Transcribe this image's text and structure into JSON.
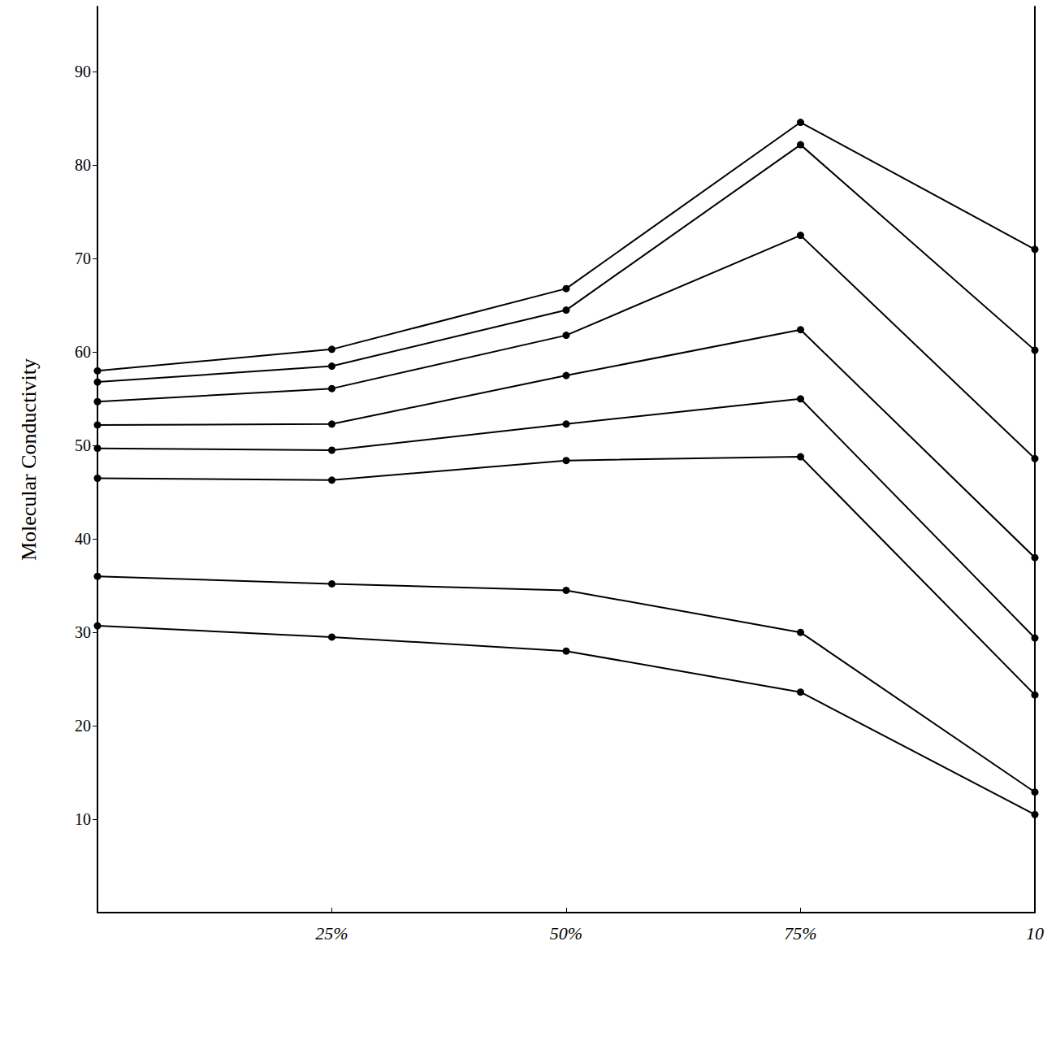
{
  "chart_data": {
    "type": "line",
    "y_label": "Molecular Conductivity",
    "categories": [
      null,
      "25%",
      "50%",
      "75%",
      "10"
    ],
    "series": [
      {
        "color": "#000000",
        "values": [
          58,
          60.3,
          66.8,
          84.6,
          71
        ]
      },
      {
        "color": "#000000",
        "values": [
          56.8,
          58.5,
          64.5,
          82.2,
          60.2
        ]
      },
      {
        "color": "#000000",
        "values": [
          54.7,
          56.1,
          61.8,
          72.5,
          48.6
        ]
      },
      {
        "color": "#000000",
        "values": [
          52.2,
          52.3,
          57.5,
          62.4,
          38
        ]
      },
      {
        "color": "#000000",
        "values": [
          49.7,
          49.5,
          52.3,
          55,
          29.4
        ]
      },
      {
        "color": "#000000",
        "values": [
          46.5,
          46.3,
          48.4,
          48.8,
          23.3
        ]
      },
      {
        "color": "#000000",
        "values": [
          36,
          35.2,
          34.5,
          30,
          12.9
        ]
      },
      {
        "color": "#000000",
        "values": [
          30.7,
          29.5,
          28,
          23.6,
          10.5
        ]
      }
    ],
    "ylim": [
      0,
      97
    ],
    "yticks": [
      10,
      20,
      30,
      40,
      50,
      60,
      70,
      80,
      90
    ],
    "marker": "circle",
    "grid": false
  }
}
